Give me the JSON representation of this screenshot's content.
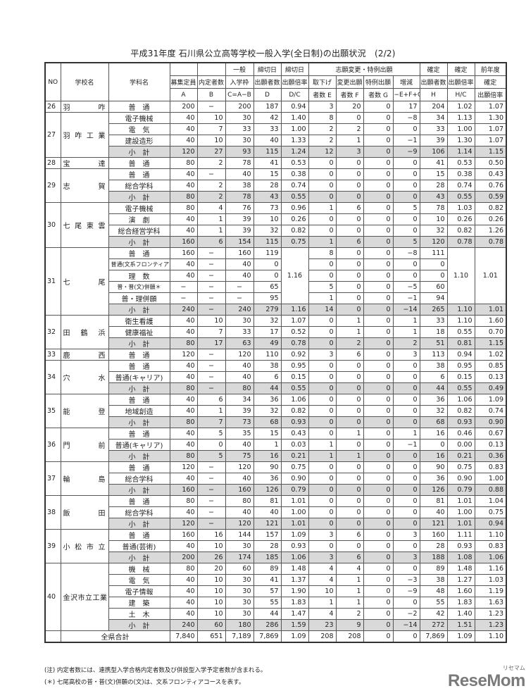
{
  "title": "平成31年度  石川県公立高等学校一般入学(全日制)の出願状況　(2/2)",
  "header": {
    "no": "NO",
    "school": "学校名",
    "dept": "学科名",
    "a": [
      "募集定員",
      "A"
    ],
    "b": [
      "内定者数",
      "B"
    ],
    "c": [
      "一般",
      "入学枠",
      "C=A−B"
    ],
    "d": [
      "締切日",
      "出願者数",
      "D"
    ],
    "dc": [
      "締切日",
      "出願倍率",
      "D/C"
    ],
    "change_group": "志願変更・特例出願",
    "e": [
      "取下げ",
      "者数 E"
    ],
    "f": [
      "変更出願",
      "者数 F"
    ],
    "g": [
      "特例出願",
      "者数 G"
    ],
    "inc": [
      "増減",
      "−E+F+G"
    ],
    "h": [
      "確定",
      "出願者数",
      "H"
    ],
    "hc": [
      "確定",
      "出願倍率",
      "H/C"
    ],
    "prev": [
      "前年度",
      "確定",
      "出願倍率"
    ]
  },
  "schools": [
    {
      "no": "26",
      "name": "羽　咋",
      "depts": [
        {
          "name": "普　通",
          "cells": [
            "200",
            "−",
            "200",
            "187",
            "0.94",
            "3",
            "20",
            "0",
            "17",
            "204",
            "1.02",
            "1.07"
          ]
        }
      ]
    },
    {
      "no": "27",
      "name": "羽咋工業",
      "depts": [
        {
          "name": "電子機械",
          "cells": [
            "40",
            "10",
            "30",
            "42",
            "1.40",
            "8",
            "0",
            "0",
            "−8",
            "34",
            "1.13",
            "1.30"
          ]
        },
        {
          "name": "電　気",
          "cells": [
            "40",
            "7",
            "33",
            "33",
            "1.00",
            "2",
            "2",
            "0",
            "0",
            "33",
            "1.00",
            "1.07"
          ]
        },
        {
          "name": "建設造形",
          "cells": [
            "40",
            "10",
            "30",
            "40",
            "1.33",
            "2",
            "1",
            "0",
            "−1",
            "39",
            "1.30",
            "1.07"
          ]
        },
        {
          "name": "小　計",
          "subtotal": true,
          "cells": [
            "120",
            "27",
            "93",
            "115",
            "1.24",
            "12",
            "3",
            "0",
            "−9",
            "106",
            "1.14",
            "1.15"
          ]
        }
      ]
    },
    {
      "no": "28",
      "name": "宝　達",
      "depts": [
        {
          "name": "普　通",
          "cells": [
            "80",
            "2",
            "78",
            "41",
            "0.53",
            "0",
            "0",
            "0",
            "0",
            "41",
            "0.53",
            "0.50"
          ]
        }
      ]
    },
    {
      "no": "29",
      "name": "志　賀",
      "depts": [
        {
          "name": "普　通",
          "cells": [
            "40",
            "−",
            "40",
            "15",
            "0.38",
            "0",
            "0",
            "0",
            "0",
            "15",
            "0.38",
            "0.43"
          ]
        },
        {
          "name": "総合学科",
          "cells": [
            "40",
            "2",
            "38",
            "28",
            "0.74",
            "0",
            "0",
            "0",
            "0",
            "28",
            "0.74",
            "0.76"
          ]
        },
        {
          "name": "小　計",
          "subtotal": true,
          "cells": [
            "80",
            "2",
            "78",
            "43",
            "0.55",
            "0",
            "0",
            "0",
            "0",
            "43",
            "0.55",
            "0.59"
          ]
        }
      ]
    },
    {
      "no": "30",
      "name": "七尾東雲",
      "depts": [
        {
          "name": "電子機械",
          "cells": [
            "80",
            "4",
            "76",
            "73",
            "0.96",
            "1",
            "6",
            "0",
            "5",
            "78",
            "1.03",
            "0.82"
          ]
        },
        {
          "name": "演　劇",
          "cells": [
            "40",
            "1",
            "39",
            "10",
            "0.26",
            "0",
            "0",
            "0",
            "0",
            "10",
            "0.26",
            "0.26"
          ]
        },
        {
          "name": "総合経営学科",
          "cells": [
            "40",
            "1",
            "39",
            "32",
            "0.82",
            "0",
            "0",
            "0",
            "0",
            "32",
            "0.82",
            "1.26"
          ]
        },
        {
          "name": "小　計",
          "subtotal": true,
          "cells": [
            "160",
            "6",
            "154",
            "115",
            "0.75",
            "1",
            "6",
            "0",
            "5",
            "120",
            "0.78",
            "0.78"
          ]
        }
      ]
    },
    {
      "no": "31",
      "name": "七　尾",
      "merged": {
        "rows": 5,
        "cols": [
          4,
          10,
          11
        ]
      },
      "depts": [
        {
          "name": "普　通",
          "cells": [
            "160",
            "−",
            "160",
            "119",
            "1.16",
            "8",
            "0",
            "0",
            "−8",
            "111",
            "1.10",
            "1.01"
          ]
        },
        {
          "name": "普通(文系フロンティア)",
          "cells": [
            "40",
            "−",
            "40",
            "0",
            "",
            "0",
            "0",
            "0",
            "0",
            "0",
            "",
            ""
          ]
        },
        {
          "name": "理　数",
          "cells": [
            "40",
            "−",
            "40",
            "0",
            "",
            "0",
            "0",
            "0",
            "0",
            "0",
            "",
            ""
          ]
        },
        {
          "name": "普・普(文)併願＊",
          "cells": [
            "−",
            "−",
            "−",
            "65",
            "",
            "5",
            "0",
            "0",
            "−5",
            "60",
            "",
            ""
          ]
        },
        {
          "name": "普・理併願",
          "cells": [
            "−",
            "−",
            "−",
            "95",
            "",
            "1",
            "0",
            "0",
            "−1",
            "94",
            "",
            ""
          ]
        },
        {
          "name": "小　計",
          "subtotal": true,
          "cells": [
            "240",
            "−",
            "240",
            "279",
            "1.16",
            "14",
            "0",
            "0",
            "−14",
            "265",
            "1.10",
            "1.01"
          ]
        }
      ]
    },
    {
      "no": "32",
      "name": "田鶴浜",
      "depts": [
        {
          "name": "衛生看護",
          "cells": [
            "40",
            "10",
            "30",
            "32",
            "1.07",
            "0",
            "1",
            "0",
            "1",
            "33",
            "1.10",
            "1.60"
          ]
        },
        {
          "name": "健康福祉",
          "cells": [
            "40",
            "7",
            "33",
            "17",
            "0.52",
            "0",
            "1",
            "0",
            "1",
            "18",
            "0.55",
            "0.70"
          ]
        },
        {
          "name": "小　計",
          "subtotal": true,
          "cells": [
            "80",
            "17",
            "63",
            "49",
            "0.78",
            "0",
            "2",
            "0",
            "2",
            "51",
            "0.81",
            "1.15"
          ]
        }
      ]
    },
    {
      "no": "33",
      "name": "鹿　西",
      "depts": [
        {
          "name": "普　通",
          "cells": [
            "120",
            "−",
            "120",
            "110",
            "0.92",
            "3",
            "6",
            "0",
            "3",
            "113",
            "0.94",
            "1.02"
          ]
        }
      ]
    },
    {
      "no": "34",
      "name": "穴　水",
      "depts": [
        {
          "name": "普　通",
          "cells": [
            "40",
            "−",
            "40",
            "38",
            "0.95",
            "0",
            "0",
            "0",
            "0",
            "38",
            "0.95",
            "0.85"
          ]
        },
        {
          "name": "普通(キャリア)",
          "cells": [
            "40",
            "−",
            "40",
            "6",
            "0.15",
            "0",
            "0",
            "0",
            "0",
            "6",
            "0.15",
            "0.13"
          ]
        },
        {
          "name": "小　計",
          "subtotal": true,
          "cells": [
            "80",
            "−",
            "80",
            "44",
            "0.55",
            "0",
            "0",
            "0",
            "0",
            "44",
            "0.55",
            "0.49"
          ]
        }
      ]
    },
    {
      "no": "35",
      "name": "能　登",
      "depts": [
        {
          "name": "普　通",
          "cells": [
            "40",
            "6",
            "34",
            "36",
            "1.06",
            "0",
            "0",
            "0",
            "0",
            "36",
            "1.06",
            "1.09"
          ]
        },
        {
          "name": "地域創造",
          "cells": [
            "40",
            "1",
            "39",
            "32",
            "0.82",
            "0",
            "0",
            "0",
            "0",
            "32",
            "0.82",
            "0.74"
          ]
        },
        {
          "name": "小　計",
          "subtotal": true,
          "cells": [
            "80",
            "7",
            "73",
            "68",
            "0.93",
            "0",
            "0",
            "0",
            "0",
            "68",
            "0.93",
            "0.90"
          ]
        }
      ]
    },
    {
      "no": "36",
      "name": "門　前",
      "depts": [
        {
          "name": "普　通",
          "cells": [
            "40",
            "5",
            "35",
            "15",
            "0.43",
            "0",
            "1",
            "0",
            "1",
            "16",
            "0.46",
            "0.67"
          ]
        },
        {
          "name": "普通(キャリア)",
          "cells": [
            "40",
            "0",
            "40",
            "1",
            "0.03",
            "1",
            "0",
            "0",
            "−1",
            "0",
            "0.00",
            "0.13"
          ]
        },
        {
          "name": "小　計",
          "subtotal": true,
          "cells": [
            "80",
            "5",
            "75",
            "16",
            "0.21",
            "1",
            "1",
            "0",
            "0",
            "16",
            "0.21",
            "0.36"
          ]
        }
      ]
    },
    {
      "no": "37",
      "name": "輪　島",
      "depts": [
        {
          "name": "普　通",
          "cells": [
            "120",
            "−",
            "120",
            "90",
            "0.75",
            "0",
            "0",
            "0",
            "0",
            "90",
            "0.75",
            "0.83"
          ]
        },
        {
          "name": "総合学科",
          "cells": [
            "40",
            "−",
            "40",
            "36",
            "0.90",
            "0",
            "0",
            "0",
            "0",
            "36",
            "0.90",
            "1.00"
          ]
        },
        {
          "name": "小　計",
          "subtotal": true,
          "cells": [
            "160",
            "−",
            "160",
            "126",
            "0.79",
            "0",
            "0",
            "0",
            "0",
            "126",
            "0.79",
            "0.88"
          ]
        }
      ]
    },
    {
      "no": "38",
      "name": "飯　田",
      "depts": [
        {
          "name": "普　通",
          "cells": [
            "80",
            "−",
            "80",
            "81",
            "1.01",
            "0",
            "0",
            "0",
            "0",
            "81",
            "1.01",
            "1.04"
          ]
        },
        {
          "name": "総合学科",
          "cells": [
            "40",
            "−",
            "40",
            "40",
            "1.00",
            "0",
            "0",
            "0",
            "0",
            "40",
            "1.00",
            "0.75"
          ]
        },
        {
          "name": "小　計",
          "subtotal": true,
          "cells": [
            "120",
            "−",
            "120",
            "121",
            "1.01",
            "0",
            "0",
            "0",
            "0",
            "121",
            "1.01",
            "0.94"
          ]
        }
      ]
    },
    {
      "no": "39",
      "name": "小松市立",
      "depts": [
        {
          "name": "普　通",
          "cells": [
            "160",
            "16",
            "144",
            "157",
            "1.09",
            "3",
            "6",
            "0",
            "3",
            "160",
            "1.11",
            "1.10"
          ]
        },
        {
          "name": "普通(芸術)",
          "cells": [
            "40",
            "10",
            "30",
            "28",
            "0.93",
            "0",
            "0",
            "0",
            "0",
            "28",
            "0.93",
            "0.83"
          ]
        },
        {
          "name": "小　計",
          "subtotal": true,
          "cells": [
            "200",
            "26",
            "174",
            "185",
            "1.06",
            "3",
            "6",
            "0",
            "3",
            "188",
            "1.08",
            "1.06"
          ]
        }
      ]
    },
    {
      "no": "40",
      "name": "金沢市立工業",
      "long": true,
      "depts": [
        {
          "name": "機　械",
          "cells": [
            "80",
            "20",
            "60",
            "89",
            "1.48",
            "4",
            "4",
            "0",
            "0",
            "89",
            "1.48",
            "1.16"
          ]
        },
        {
          "name": "電　気",
          "cells": [
            "40",
            "10",
            "30",
            "41",
            "1.37",
            "4",
            "1",
            "0",
            "−3",
            "38",
            "1.27",
            "1.03"
          ]
        },
        {
          "name": "電子情報",
          "cells": [
            "40",
            "10",
            "30",
            "57",
            "1.90",
            "10",
            "1",
            "0",
            "−9",
            "48",
            "1.60",
            "1.19"
          ]
        },
        {
          "name": "建　築",
          "cells": [
            "40",
            "10",
            "30",
            "55",
            "1.83",
            "1",
            "1",
            "0",
            "0",
            "55",
            "1.83",
            "1.63"
          ]
        },
        {
          "name": "土　木",
          "cells": [
            "40",
            "10",
            "30",
            "44",
            "1.47",
            "4",
            "2",
            "0",
            "−2",
            "42",
            "1.40",
            "1.23"
          ]
        },
        {
          "name": "小　計",
          "subtotal": true,
          "cells": [
            "240",
            "60",
            "180",
            "286",
            "1.59",
            "23",
            "9",
            "0",
            "−14",
            "272",
            "1.51",
            "1.23"
          ]
        }
      ]
    }
  ],
  "total": {
    "label": "全県合計",
    "cells": [
      "7,840",
      "651",
      "7,189",
      "7,869",
      "1.09",
      "208",
      "208",
      "0",
      "0",
      "7,869",
      "1.09",
      "1.10"
    ]
  },
  "notes": [
    "(注) 内定者数には、連携型入学合格内定者数及び併設型入学予定者数が含まれる。",
    "(＊)  七尾高校の普・普(文)併願の(文)は、文系フロンティアコースを表す。"
  ],
  "logo": {
    "text": "ReseMom",
    "ruby": "リセマム"
  },
  "colors": {
    "subtotal_bg": "#d9d9d9",
    "border": "#555555"
  }
}
